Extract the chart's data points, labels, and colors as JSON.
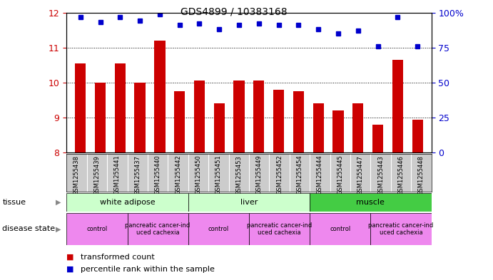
{
  "title": "GDS4899 / 10383168",
  "samples": [
    "GSM1255438",
    "GSM1255439",
    "GSM1255441",
    "GSM1255437",
    "GSM1255440",
    "GSM1255442",
    "GSM1255450",
    "GSM1255451",
    "GSM1255453",
    "GSM1255449",
    "GSM1255452",
    "GSM1255454",
    "GSM1255444",
    "GSM1255445",
    "GSM1255447",
    "GSM1255443",
    "GSM1255446",
    "GSM1255448"
  ],
  "transformed_count": [
    10.55,
    10.0,
    10.55,
    10.0,
    11.2,
    9.75,
    10.05,
    9.4,
    10.05,
    10.05,
    9.8,
    9.75,
    9.4,
    9.2,
    9.4,
    8.8,
    10.65,
    8.95
  ],
  "percentile_rank": [
    97,
    93,
    97,
    94,
    99,
    91,
    92,
    88,
    91,
    92,
    91,
    91,
    88,
    85,
    87,
    76,
    97,
    76
  ],
  "ylim_left": [
    8,
    12
  ],
  "ylim_right": [
    0,
    100
  ],
  "yticks_left": [
    8,
    9,
    10,
    11,
    12
  ],
  "yticks_right": [
    0,
    25,
    50,
    75,
    100
  ],
  "bar_color": "#cc0000",
  "dot_color": "#0000cc",
  "tissue_data": [
    {
      "label": "white adipose",
      "start": 0,
      "end": 6,
      "color": "#ccffcc"
    },
    {
      "label": "liver",
      "start": 6,
      "end": 12,
      "color": "#ccffcc"
    },
    {
      "label": "muscle",
      "start": 12,
      "end": 18,
      "color": "#44cc44"
    }
  ],
  "disease_data": [
    {
      "label": "control",
      "start": 0,
      "end": 3
    },
    {
      "label": "pancreatic cancer-ind\nuced cachexia",
      "start": 3,
      "end": 6
    },
    {
      "label": "control",
      "start": 6,
      "end": 9
    },
    {
      "label": "pancreatic cancer-ind\nuced cachexia",
      "start": 9,
      "end": 12
    },
    {
      "label": "control",
      "start": 12,
      "end": 15
    },
    {
      "label": "pancreatic cancer-ind\nuced cachexia",
      "start": 15,
      "end": 18
    }
  ],
  "disease_color": "#ee88ee",
  "sample_bg_color": "#cccccc",
  "tissue_row_label": "tissue",
  "disease_row_label": "disease state",
  "legend_bar_label": "transformed count",
  "legend_dot_label": "percentile rank within the sample",
  "background_color": "#ffffff",
  "axis_color_left": "#cc0000",
  "axis_color_right": "#0000cc",
  "arrow_color": "#888888"
}
